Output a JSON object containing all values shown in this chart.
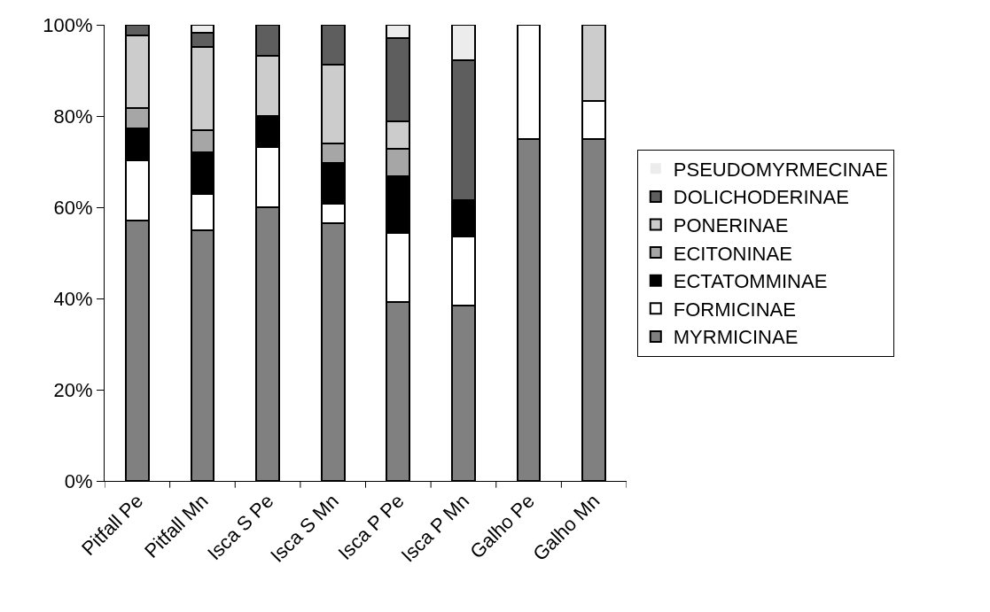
{
  "chart_data": {
    "type": "bar",
    "stacked": true,
    "categories": [
      "Pitfall Pe",
      "Pitfall Mn",
      "Isca S Pe",
      "Isca S Mn",
      "Isca P Pe",
      "Isca P Mn",
      "Galho Pe",
      "Galho Mn"
    ],
    "series": [
      {
        "name": "MYRMICINAE",
        "color": "#808080",
        "values": [
          57,
          55,
          60,
          56.5,
          39.3,
          38.5,
          75,
          75
        ]
      },
      {
        "name": "FORMICINAE",
        "color": "#ffffff",
        "values": [
          13.3,
          8,
          13.2,
          4.2,
          15,
          15.1,
          25,
          8.3
        ]
      },
      {
        "name": "ECTATOMMINAE",
        "color": "#000000",
        "values": [
          7,
          9,
          6.8,
          9.1,
          12.5,
          7.9,
          0,
          0
        ]
      },
      {
        "name": "ECITONINAE",
        "color": "#a6a6a6",
        "values": [
          4.5,
          4.8,
          0,
          4.2,
          6,
          0,
          0,
          0
        ]
      },
      {
        "name": "PONERINAE",
        "color": "#cccccc",
        "values": [
          15.9,
          18.4,
          13.3,
          17.3,
          6,
          0,
          0,
          16.7
        ]
      },
      {
        "name": "DOLICHODERINAE",
        "color": "#5e5e5e",
        "values": [
          2.3,
          3.1,
          6.7,
          8.7,
          18.2,
          30.8,
          0,
          0
        ]
      },
      {
        "name": "PSEUDOMYRMECINAE",
        "color": "#ececec",
        "values": [
          0,
          1.7,
          0,
          0,
          3,
          7.7,
          0,
          0
        ]
      }
    ],
    "ylim": [
      0,
      100
    ],
    "yticks": [
      {
        "value": 0,
        "label": "0%"
      },
      {
        "value": 20,
        "label": "20%"
      },
      {
        "value": 40,
        "label": "40%"
      },
      {
        "value": 60,
        "label": "60%"
      },
      {
        "value": 80,
        "label": "80%"
      },
      {
        "value": 100,
        "label": "100%"
      }
    ],
    "legend": "right"
  }
}
